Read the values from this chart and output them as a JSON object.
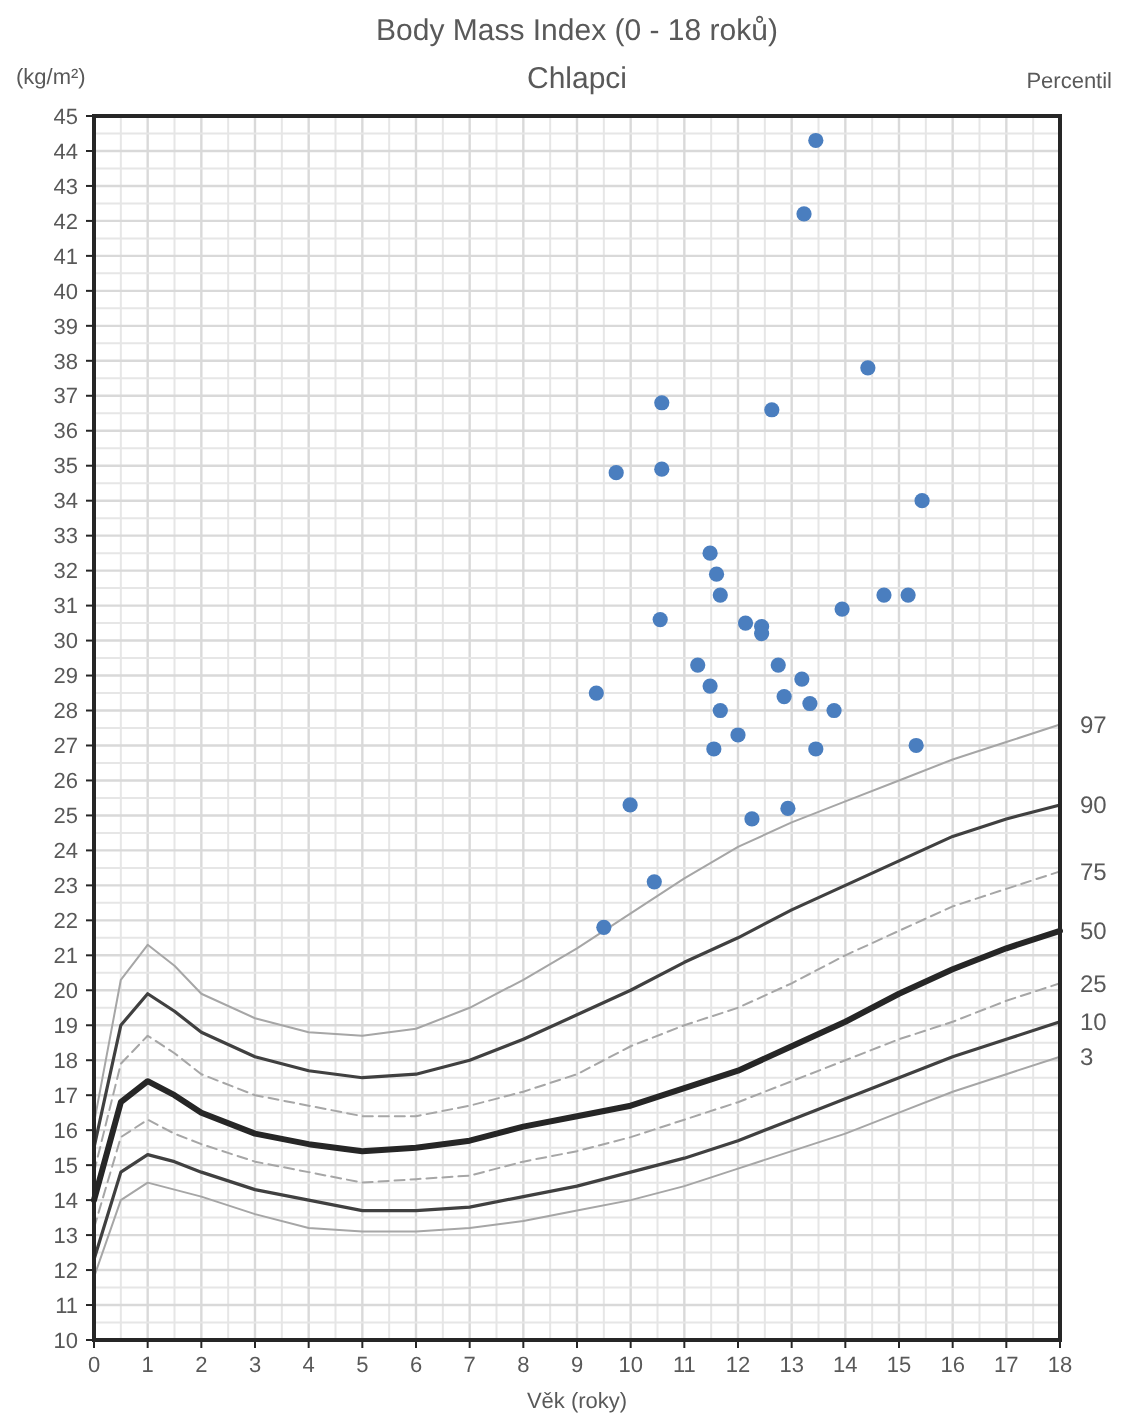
{
  "chart_data": {
    "type": "line",
    "title": "Body Mass Index  (0 - 18 roků)",
    "subtitle": "Chlapci",
    "xlabel": "Věk (roky)",
    "ylabel": "(kg/m²)",
    "y2label": "Percentil",
    "x": [
      0,
      0.5,
      1,
      1.5,
      2,
      3,
      4,
      5,
      6,
      7,
      8,
      9,
      10,
      11,
      12,
      13,
      14,
      15,
      16,
      17,
      18
    ],
    "series": [
      {
        "name": "97",
        "color": "#a6a6a6",
        "line_style": "solid",
        "values": [
          16.2,
          20.3,
          21.3,
          20.7,
          19.9,
          19.2,
          18.8,
          18.7,
          18.9,
          19.5,
          20.3,
          21.2,
          22.2,
          23.2,
          24.1,
          24.8,
          25.4,
          26.0,
          26.6,
          27.1,
          27.6
        ]
      },
      {
        "name": "90",
        "color": "#404040",
        "line_style": "solid",
        "values": [
          15.5,
          19.0,
          19.9,
          19.4,
          18.8,
          18.1,
          17.7,
          17.5,
          17.6,
          18.0,
          18.6,
          19.3,
          20.0,
          20.8,
          21.5,
          22.3,
          23.0,
          23.7,
          24.4,
          24.9,
          25.3
        ]
      },
      {
        "name": "75",
        "color": "#a6a6a6",
        "line_style": "dashed",
        "values": [
          14.8,
          17.9,
          18.7,
          18.2,
          17.6,
          17.0,
          16.7,
          16.4,
          16.4,
          16.7,
          17.1,
          17.6,
          18.4,
          19.0,
          19.5,
          20.2,
          21.0,
          21.7,
          22.4,
          22.9,
          23.4
        ]
      },
      {
        "name": "50",
        "color": "#262626",
        "line_style": "solid",
        "values": [
          14.0,
          16.8,
          17.4,
          17.0,
          16.5,
          15.9,
          15.6,
          15.4,
          15.5,
          15.7,
          16.1,
          16.4,
          16.7,
          17.2,
          17.7,
          18.4,
          19.1,
          19.9,
          20.6,
          21.2,
          21.7
        ]
      },
      {
        "name": "25",
        "color": "#a6a6a6",
        "line_style": "dashed",
        "values": [
          13.2,
          15.8,
          16.3,
          15.9,
          15.6,
          15.1,
          14.8,
          14.5,
          14.6,
          14.7,
          15.1,
          15.4,
          15.8,
          16.3,
          16.8,
          17.4,
          18.0,
          18.6,
          19.1,
          19.7,
          20.2
        ]
      },
      {
        "name": "10",
        "color": "#404040",
        "line_style": "solid",
        "values": [
          12.3,
          14.8,
          15.3,
          15.1,
          14.8,
          14.3,
          14.0,
          13.7,
          13.7,
          13.8,
          14.1,
          14.4,
          14.8,
          15.2,
          15.7,
          16.3,
          16.9,
          17.5,
          18.1,
          18.6,
          19.1
        ]
      },
      {
        "name": "3",
        "color": "#a6a6a6",
        "line_style": "solid",
        "values": [
          11.8,
          14.0,
          14.5,
          14.3,
          14.1,
          13.6,
          13.2,
          13.1,
          13.1,
          13.2,
          13.4,
          13.7,
          14.0,
          14.4,
          14.9,
          15.4,
          15.9,
          16.5,
          17.1,
          17.6,
          18.1
        ]
      },
      {
        "type": "scatter",
        "color": "#4a7ebf",
        "marker": "circle",
        "x": [
          13.45,
          13.23,
          14.42,
          10.58,
          12.63,
          9.73,
          10.58,
          15.43,
          11.48,
          11.6,
          11.67,
          14.72,
          15.17,
          13.94,
          10.55,
          12.14,
          12.44,
          12.44,
          11.25,
          12.75,
          11.48,
          13.19,
          9.36,
          12.86,
          13.34,
          13.79,
          11.67,
          12.0,
          11.55,
          13.45,
          15.32,
          9.99,
          12.93,
          12.26,
          10.44,
          9.5
        ],
        "values": [
          44.3,
          42.2,
          37.8,
          36.8,
          36.6,
          34.8,
          34.9,
          34.0,
          32.5,
          31.9,
          31.3,
          31.3,
          31.3,
          30.9,
          30.6,
          30.5,
          30.4,
          30.2,
          29.3,
          29.3,
          28.7,
          28.9,
          28.5,
          28.4,
          28.2,
          28.0,
          28.0,
          27.3,
          26.9,
          26.9,
          27.0,
          25.3,
          25.2,
          24.9,
          23.1,
          21.8
        ]
      }
    ],
    "xlim": [
      0,
      18
    ],
    "xticks": [
      0,
      1,
      2,
      3,
      4,
      5,
      6,
      7,
      8,
      9,
      10,
      11,
      12,
      13,
      14,
      15,
      16,
      17,
      18
    ],
    "ylim": [
      10,
      45
    ],
    "yticks": [
      10,
      11,
      12,
      13,
      14,
      15,
      16,
      17,
      18,
      19,
      20,
      21,
      22,
      23,
      24,
      25,
      26,
      27,
      28,
      29,
      30,
      31,
      32,
      33,
      34,
      35,
      36,
      37,
      38,
      39,
      40,
      41,
      42,
      43,
      44,
      45
    ],
    "grid": true
  }
}
